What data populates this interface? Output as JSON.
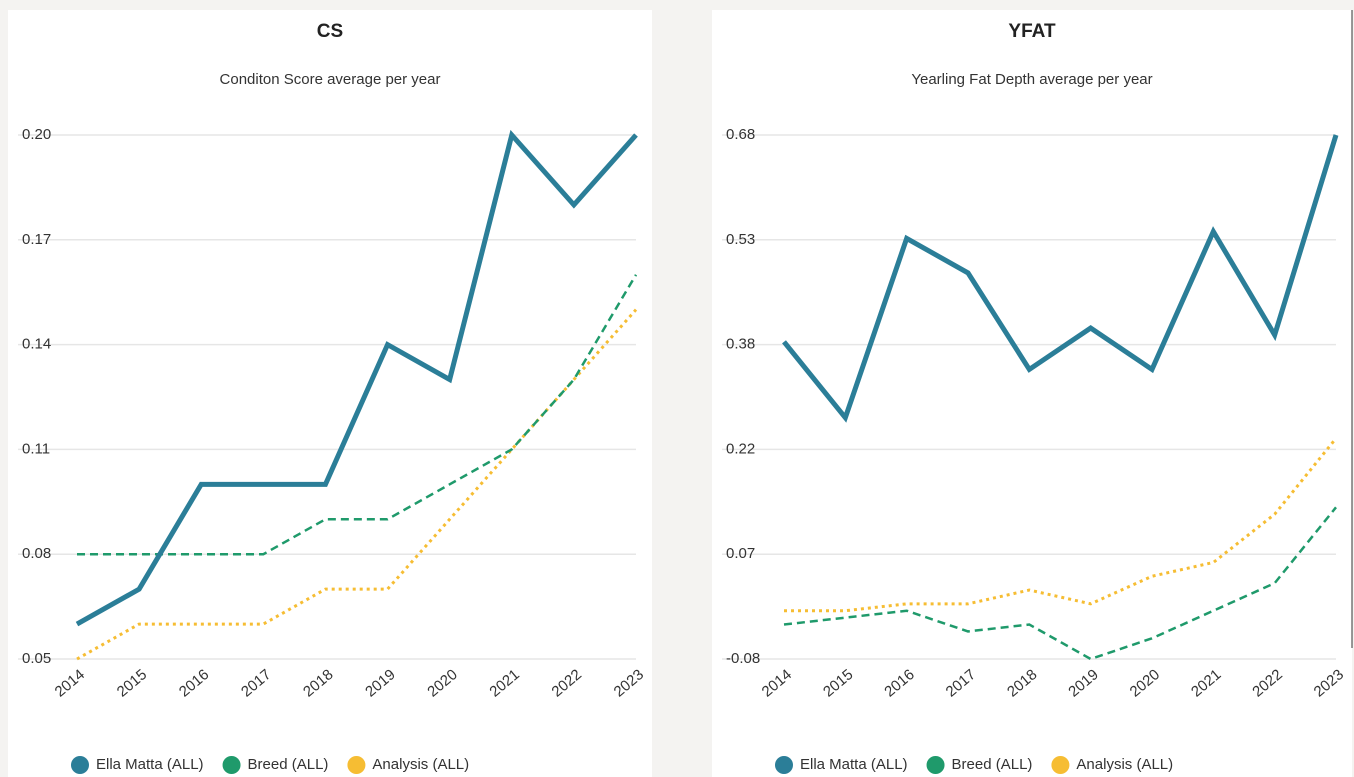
{
  "chart_data": [
    {
      "type": "line",
      "title": "CS",
      "subtitle": "Conditon Score average per year",
      "categories": [
        "2014",
        "2015",
        "2016",
        "2017",
        "2018",
        "2019",
        "2020",
        "2021",
        "2022",
        "2023"
      ],
      "series": [
        {
          "name": "Ella Matta (ALL)",
          "color": "#2b7e98",
          "style": "solid",
          "values": [
            0.06,
            0.07,
            0.1,
            0.1,
            0.1,
            0.14,
            0.13,
            0.2,
            0.18,
            0.2
          ]
        },
        {
          "name": "Breed (ALL)",
          "color": "#1f9a6b",
          "style": "dashed",
          "values": [
            0.08,
            0.08,
            0.08,
            0.08,
            0.09,
            0.09,
            0.1,
            0.11,
            0.13,
            0.16
          ]
        },
        {
          "name": "Analysis (ALL)",
          "color": "#f6bd33",
          "style": "dotted",
          "values": [
            0.05,
            0.06,
            0.06,
            0.06,
            0.07,
            0.07,
            0.09,
            0.11,
            0.13,
            0.15
          ]
        }
      ],
      "ylim": [
        0.05,
        0.2
      ],
      "yticks": [
        0.05,
        0.08,
        0.11,
        0.14,
        0.17,
        {
          "value": 0.2,
          "label": "0.20"
        }
      ],
      "grid": true,
      "legend": "bottom"
    },
    {
      "type": "line",
      "title": "YFAT",
      "subtitle": "Yearling Fat Depth average per year",
      "categories": [
        "2014",
        "2015",
        "2016",
        "2017",
        "2018",
        "2019",
        "2020",
        "2021",
        "2022",
        "2023"
      ],
      "series": [
        {
          "name": "Ella Matta (ALL)",
          "color": "#2b7e98",
          "style": "solid",
          "values": [
            0.38,
            0.27,
            0.53,
            0.48,
            0.34,
            0.4,
            0.34,
            0.54,
            0.39,
            0.68
          ]
        },
        {
          "name": "Breed (ALL)",
          "color": "#1f9a6b",
          "style": "dashed",
          "values": [
            -0.03,
            -0.02,
            -0.01,
            -0.04,
            -0.03,
            -0.08,
            -0.05,
            -0.01,
            0.03,
            0.14
          ]
        },
        {
          "name": "Analysis (ALL)",
          "color": "#f6bd33",
          "style": "dotted",
          "values": [
            -0.01,
            -0.01,
            0.0,
            0.0,
            0.02,
            0.0,
            0.04,
            0.06,
            0.13,
            0.24
          ]
        }
      ],
      "ylim": [
        -0.08,
        0.68
      ],
      "yticks": [
        -0.08,
        {
          "value": 0.072,
          "label": "0.07"
        },
        {
          "value": 0.224,
          "label": "0.22"
        },
        {
          "value": 0.376,
          "label": "0.38"
        },
        {
          "value": 0.528,
          "label": "0.53"
        },
        0.68
      ],
      "grid": true,
      "legend": "bottom"
    }
  ]
}
